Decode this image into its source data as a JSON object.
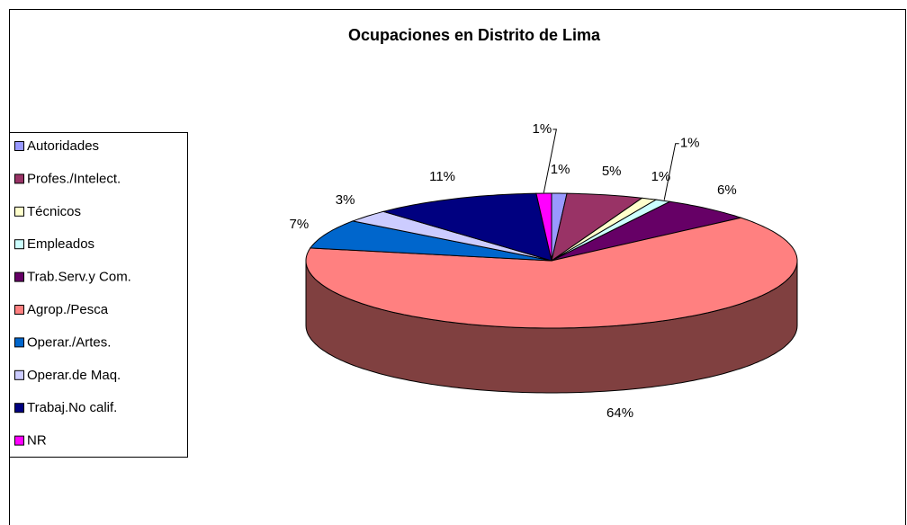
{
  "chart_data": {
    "type": "pie",
    "title": "Ocupaciones en Distrito de Lima",
    "categories": [
      "Autoridades",
      "Profes./Intelect.",
      "Técnicos",
      "Empleados",
      "Trab.Serv.y Com.",
      "Agrop./Pesca",
      "Operar./Artes.",
      "Operar.de Maq.",
      "Trabaj.No calif.",
      "NR"
    ],
    "values": [
      1,
      5,
      1,
      1,
      6,
      64,
      7,
      3,
      11,
      1
    ],
    "value_labels": [
      "1%",
      "5%",
      "1%",
      "1%",
      "6%",
      "64%",
      "7%",
      "3%",
      "11%",
      "1%"
    ],
    "colors": [
      "#9999ff",
      "#993366",
      "#ffffcc",
      "#ccffff",
      "#660066",
      "#ff8080",
      "#0066cc",
      "#ccccff",
      "#000080",
      "#ff00ff"
    ],
    "legend": "left"
  }
}
